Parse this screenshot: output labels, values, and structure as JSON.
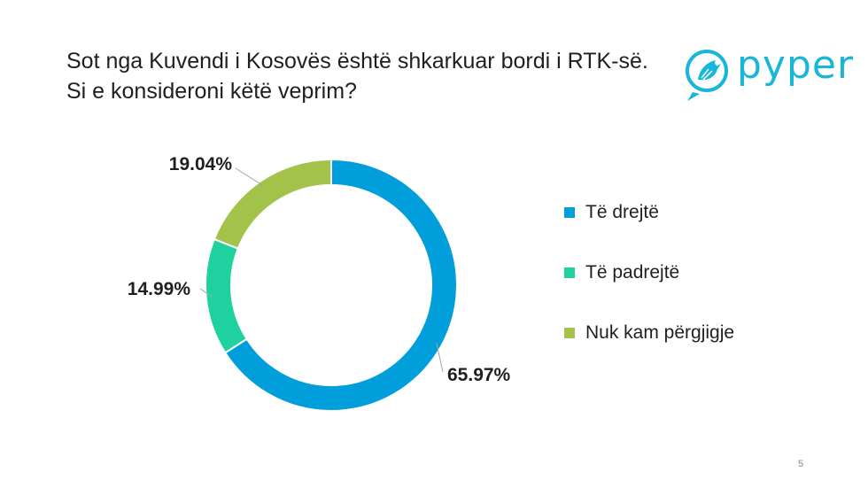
{
  "title": {
    "line1": "Sot nga Kuvendi i Kosovës është shkarkuar bordi i RTK-së.",
    "line2": "Si e konsideroni këtë veprim?"
  },
  "logo": {
    "text": "pyper",
    "color": "#18b6d8"
  },
  "page_number": "5",
  "chart_data": {
    "type": "pie",
    "donut": true,
    "categories": [
      "Të drejtë",
      "Të padrejtë",
      "Nuk kam përgjigje"
    ],
    "values": [
      65.97,
      14.99,
      19.04
    ],
    "labels": [
      "65.97%",
      "14.99%",
      "19.04%"
    ],
    "colors": [
      "#009fdb",
      "#1fd19e",
      "#a3c24a"
    ],
    "legend_position": "right"
  }
}
